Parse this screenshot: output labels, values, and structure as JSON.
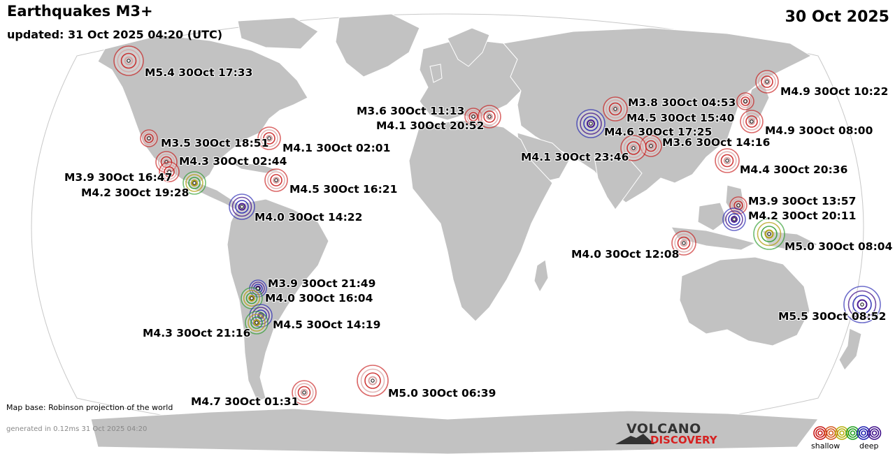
{
  "header": {
    "title": "Earthquakes M3+",
    "updated": "updated: 31 Oct 2025 04:20 (UTC)",
    "date": "30 Oct 2025"
  },
  "footer": {
    "map_base": "Map base: Robinson projection of the world",
    "generated": "generated in 0.12ms 31 Oct 2025 04:20"
  },
  "logo": {
    "line1": "VOLCANO",
    "line2": "DISCOVERY"
  },
  "legend": {
    "shallow": "shallow",
    "deep": "deep",
    "colors": [
      "#c81818",
      "#d55a20",
      "#b8b010",
      "#22a022",
      "#2020b0",
      "#40108a"
    ]
  },
  "colors": {
    "ocean": "#ffffff",
    "land": "#c2c2c2",
    "coast": "#ffffff"
  },
  "earthquakes": [
    {
      "label": "M5.4 30Oct 17:33",
      "depth_class": "shallow"
    },
    {
      "label": "M3.5 30Oct 18:51",
      "depth_class": "shallow"
    },
    {
      "label": "M4.1 30Oct 02:01",
      "depth_class": "shallow"
    },
    {
      "label": "M4.3 30Oct 02:44",
      "depth_class": "shallow"
    },
    {
      "label": "M3.9 30Oct 16:47",
      "depth_class": "shallow"
    },
    {
      "label": "M4.2 30Oct 19:28",
      "depth_class": "intermediate"
    },
    {
      "label": "M4.5 30Oct 16:21",
      "depth_class": "shallow"
    },
    {
      "label": "M4.0 30Oct 14:22",
      "depth_class": "deep"
    },
    {
      "label": "M3.9 30Oct 21:49",
      "depth_class": "deep"
    },
    {
      "label": "M4.0 30Oct 16:04",
      "depth_class": "intermediate"
    },
    {
      "label": "M4.5 30Oct 14:19",
      "depth_class": "deep"
    },
    {
      "label": "M4.3 30Oct 21:16",
      "depth_class": "intermediate"
    },
    {
      "label": "M4.7 30Oct 01:31",
      "depth_class": "shallow"
    },
    {
      "label": "M5.0 30Oct 06:39",
      "depth_class": "shallow"
    },
    {
      "label": "M3.6 30Oct 11:13",
      "depth_class": "shallow"
    },
    {
      "label": "M4.1 30Oct 20:52",
      "depth_class": "shallow"
    },
    {
      "label": "M3.8 30Oct 04:53",
      "depth_class": "shallow"
    },
    {
      "label": "M4.5 30Oct 15:40",
      "depth_class": "shallow"
    },
    {
      "label": "M4.6 30Oct 17:25",
      "depth_class": "deep"
    },
    {
      "label": "M3.6 30Oct 14:16",
      "depth_class": "shallow"
    },
    {
      "label": "M4.1 30Oct 23:46",
      "depth_class": "shallow"
    },
    {
      "label": "M4.9 30Oct 10:22",
      "depth_class": "shallow"
    },
    {
      "label": "M4.9 30Oct 08:00",
      "depth_class": "shallow"
    },
    {
      "label": "M4.4 30Oct 20:36",
      "depth_class": "shallow"
    },
    {
      "label": "M3.9 30Oct 13:57",
      "depth_class": "shallow"
    },
    {
      "label": "M4.2 30Oct 20:11",
      "depth_class": "deep"
    },
    {
      "label": "M5.0 30Oct 08:04",
      "depth_class": "intermediate"
    },
    {
      "label": "M4.0 30Oct 12:08",
      "depth_class": "shallow"
    },
    {
      "label": "M5.5 30Oct 08:52",
      "depth_class": "deep"
    }
  ]
}
